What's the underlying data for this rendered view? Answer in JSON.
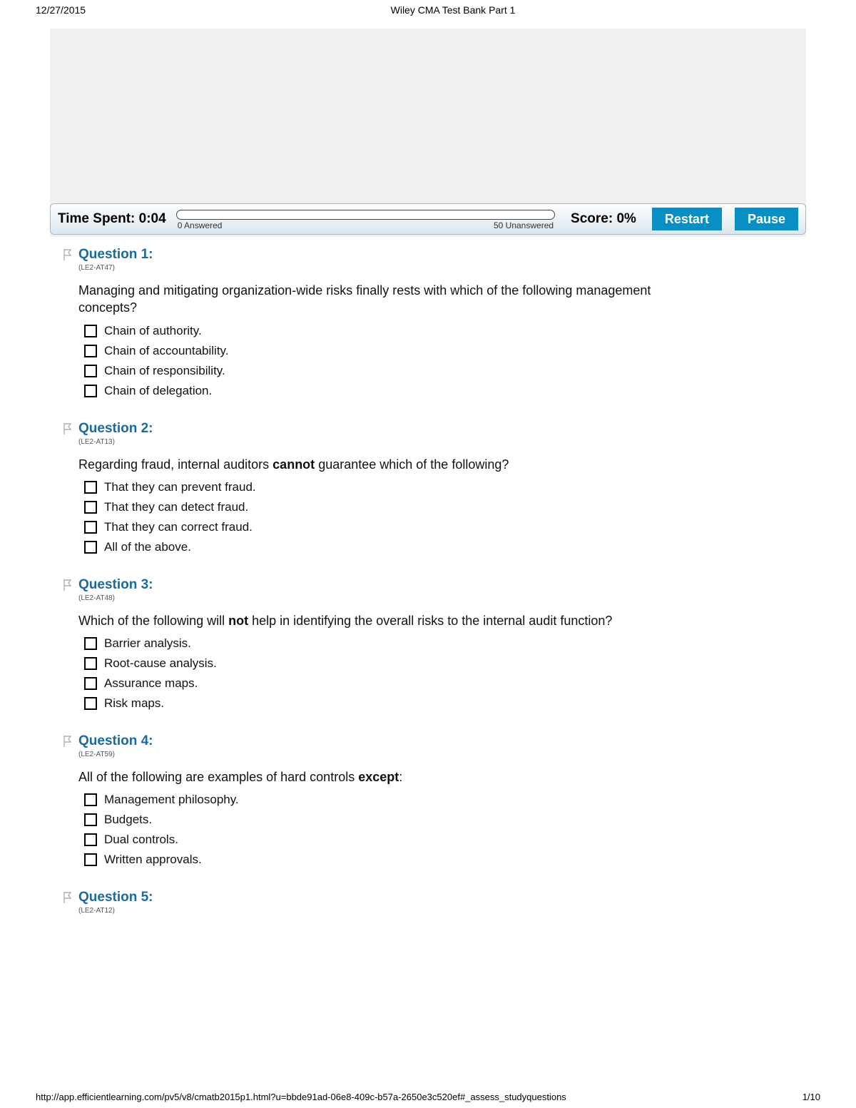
{
  "header": {
    "date": "12/27/2015",
    "title": "Wiley CMA Test Bank Part 1"
  },
  "toolbar": {
    "time_label": "Time Spent: 0:04",
    "answered_label": "0 Answered",
    "unanswered_label": "50 Unanswered",
    "score_label": "Score: 0%",
    "restart_label": "Restart",
    "pause_label": "Pause"
  },
  "colors": {
    "link": "#1a6aa0",
    "button_bg": "#0a8fc4"
  },
  "questions": [
    {
      "title": "Question 1:",
      "code": "(LE2-AT47)",
      "text_parts": [
        "Managing and mitigating organization-wide risks finally rests with which of the following management concepts?"
      ],
      "bold_index": -1,
      "choices": [
        "Chain of authority.",
        "Chain of accountability.",
        "Chain of responsibility.",
        "Chain of delegation."
      ]
    },
    {
      "title": "Question 2:",
      "code": "(LE2-AT13)",
      "text_parts": [
        "Regarding fraud, internal auditors ",
        "cannot",
        " guarantee which of the following?"
      ],
      "bold_index": 1,
      "choices": [
        "That they can prevent fraud.",
        "That they can detect fraud.",
        "That they can correct fraud.",
        "All of the above."
      ]
    },
    {
      "title": "Question 3:",
      "code": "(LE2-AT48)",
      "text_parts": [
        "Which of the following will ",
        "not",
        " help in identifying the overall risks to the internal audit function?"
      ],
      "bold_index": 1,
      "choices": [
        "Barrier analysis.",
        "Root-cause analysis.",
        "Assurance maps.",
        "Risk maps."
      ]
    },
    {
      "title": "Question 4:",
      "code": "(LE2-AT59)",
      "text_parts": [
        "All of the following are examples of hard controls ",
        "except",
        ":"
      ],
      "bold_index": 1,
      "choices": [
        "Management philosophy.",
        "Budgets.",
        "Dual controls.",
        "Written approvals."
      ]
    },
    {
      "title": "Question 5:",
      "code": "(LE2-AT12)",
      "text_parts": [
        ""
      ],
      "bold_index": -1,
      "choices": []
    }
  ],
  "footer": {
    "url": "http://app.efficientlearning.com/pv5/v8/cmatb2015p1.html?u=bbde91ad-06e8-409c-b57a-2650e3c520ef#_assess_studyquestions",
    "page": "1/10"
  }
}
